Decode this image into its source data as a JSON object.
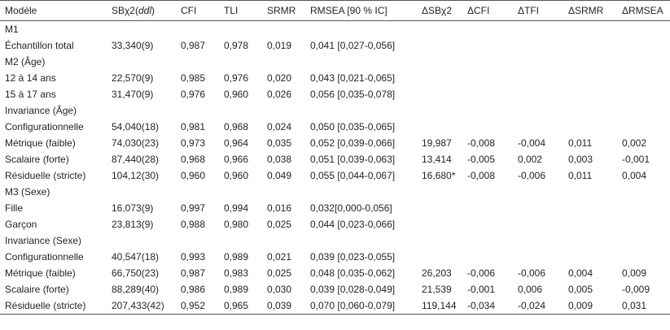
{
  "table": {
    "header": [
      "Modèle",
      [
        "SBχ2(",
        "ddl",
        ")"
      ],
      "CFI",
      "TLI",
      "SRMR",
      "RMSEA [90 % IC]",
      "ΔSBχ2",
      "ΔCFI",
      "ΔTFI",
      "ΔSRMR",
      "ΔRMSEA"
    ],
    "rows": [
      [
        "M1"
      ],
      [
        "Échantillon total",
        "33,340(9)",
        "0,987",
        "0,978",
        "0,019",
        "0,041 [0,027-0,056]"
      ],
      [
        "M2 (Âge)"
      ],
      [
        "12 à 14 ans",
        "22,570(9)",
        "0,985",
        "0,976",
        "0,020",
        "0,043 [0,021-0,065]"
      ],
      [
        "15 à 17 ans",
        "31,470(9)",
        "0,976",
        "0,960",
        "0,026",
        "0,056 [0,035-0,078]"
      ],
      [
        "Invariance (Âge)"
      ],
      [
        "Configurationnelle",
        "54,040(18)",
        "0,981",
        "0,968",
        "0,024",
        "0,050 [0,035-0,065]"
      ],
      [
        "Métrique (faible)",
        "74,030(23)",
        "0,973",
        "0,964",
        "0,035",
        "0,052 [0,039-0,066]",
        "19,987",
        "-0,008",
        "-0,004",
        "0,011",
        "0,002"
      ],
      [
        "Scalaire (forte)",
        "87,440(28)",
        "0,968",
        "0,966",
        "0,038",
        "0,051 [0,039-0,063]",
        "13,414",
        "-0,005",
        "0,002",
        "0,003",
        "-0,001"
      ],
      [
        "Résiduelle (stricte)",
        "104,12(30)",
        "0,960",
        "0,960",
        "0,049",
        "0,055 [0,044-0,067]",
        "16,680*",
        "-0,008",
        "-0,006",
        "0,011",
        "0,004"
      ],
      [
        "M3 (Sexe)"
      ],
      [
        "Fille",
        "16,073(9)",
        "0,997",
        "0,994",
        "0,016",
        "0,032[0,000-0,056]"
      ],
      [
        "Garçon",
        "23,813(9)",
        "0,988",
        "0,980",
        "0,025",
        "0,044 [0,023-0,066]"
      ],
      [
        "Invariance (Sexe)"
      ],
      [
        "Configurationnelle",
        "40,547(18)",
        "0,993",
        "0,989",
        "0,021",
        "0,039 [0,023-0,055]"
      ],
      [
        "Métrique (faible)",
        "66,750(23)",
        "0,987",
        "0,983",
        "0,025",
        "0,048 [0,035-0,062]",
        "26,203",
        "-0,006",
        "-0,006",
        "0,004",
        "0,009"
      ],
      [
        "Scalaire (forte)",
        "88,289(40)",
        "0,986",
        "0,989",
        "0,030",
        "0,039 [0,028-0,049]",
        "21,539",
        "-0,001",
        "0,006",
        "0,005",
        "-0,009"
      ],
      [
        "Résiduelle (stricte)",
        "207,433(42)",
        "0,952",
        "0,965",
        "0,039",
        "0,070 [0,060-0,079]",
        "119,144",
        "-0,034",
        "-0,024",
        "0,009",
        "0,031"
      ]
    ]
  }
}
